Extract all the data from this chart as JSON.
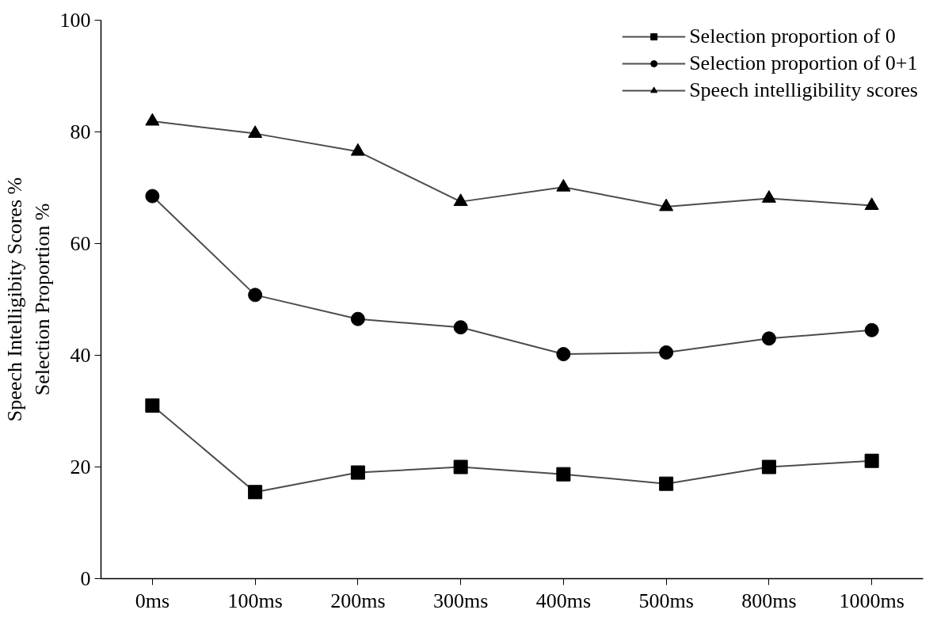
{
  "chart_data": {
    "type": "line",
    "ylabel": "Speech Intelligibity Scores %\nSelection Proportion %",
    "categories": [
      "0ms",
      "100ms",
      "200ms",
      "300ms",
      "400ms",
      "500ms",
      "800ms",
      "1000ms"
    ],
    "series": [
      {
        "name": "Selection proportion of 0",
        "color": "#000000",
        "marker": "square",
        "values": [
          31.0,
          15.5,
          19.0,
          20.0,
          18.7,
          17.0,
          20.0,
          21.1
        ]
      },
      {
        "name": "Selection proportion of 0+1",
        "color": "#000000",
        "marker": "circle",
        "values": [
          68.5,
          50.8,
          46.5,
          45.0,
          40.2,
          40.5,
          43.0,
          44.5
        ]
      },
      {
        "name": "Speech intelligibility scores",
        "color": "#000000",
        "marker": "triangle",
        "values": [
          81.9,
          79.7,
          76.5,
          67.5,
          70.1,
          66.6,
          68.1,
          66.8
        ]
      }
    ],
    "ylim": [
      0,
      100
    ],
    "yticks": [
      0,
      20,
      40,
      60,
      80,
      100
    ],
    "grid": false,
    "legend": "top right",
    "line_style": "solid"
  }
}
